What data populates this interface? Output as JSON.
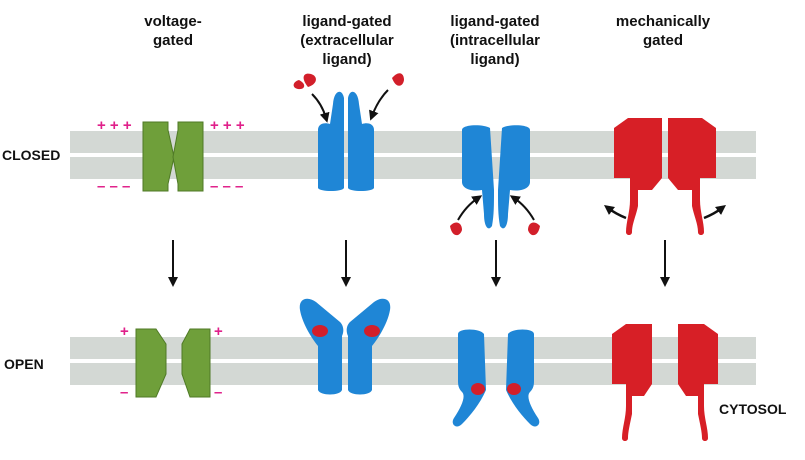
{
  "columns": [
    {
      "id": "voltage",
      "title_lines": [
        "voltage-",
        "gated"
      ]
    },
    {
      "id": "ligand-extra",
      "title_lines": [
        "ligand-gated",
        "(extracellular",
        "ligand)"
      ]
    },
    {
      "id": "ligand-intra",
      "title_lines": [
        "ligand-gated",
        "(intracellular",
        "ligand)"
      ]
    },
    {
      "id": "mechanical",
      "title_lines": [
        "mechanically",
        "gated"
      ]
    }
  ],
  "states": {
    "closed": "CLOSED",
    "open": "OPEN"
  },
  "compartment_label": "CYTOSOL",
  "charges": {
    "closed_top": "+ + +",
    "closed_bottom": "– – –",
    "open_top": "+",
    "open_bottom": "–"
  },
  "colors": {
    "membrane": "#d3d8d4",
    "voltage_channel": "#6f9f3a",
    "ligand_channel": "#1f86d6",
    "mechanical_channel": "#d71f26",
    "ligand": "#d21f2a",
    "charge": "#e0208a",
    "arrow": "#111111"
  }
}
